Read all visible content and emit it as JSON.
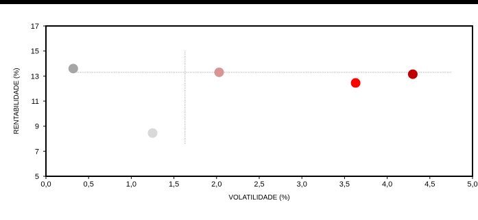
{
  "chart_data": {
    "type": "scatter",
    "xlabel": "VOLATILIDADE (%)",
    "ylabel": "RENTABILIDADE (%)",
    "xlim": [
      0,
      5
    ],
    "ylim": [
      5,
      17
    ],
    "x_ticks": [
      "0,0",
      "0,5",
      "1,0",
      "1,5",
      "2,0",
      "2,5",
      "3,0",
      "3,5",
      "4,0",
      "4,5",
      "5,0"
    ],
    "y_ticks": [
      "5",
      "7",
      "9",
      "11",
      "13",
      "15",
      "17"
    ],
    "grid": false,
    "reference_lines": [
      {
        "orientation": "vertical",
        "x": 1.63,
        "y_from": 7.6,
        "y_to": 15.0
      },
      {
        "orientation": "horizontal",
        "y": 13.3,
        "x_from": 0.3,
        "x_to": 4.75
      }
    ],
    "points": [
      {
        "x": 0.32,
        "y": 13.6,
        "color": "#a6a6a6"
      },
      {
        "x": 1.25,
        "y": 8.45,
        "color": "#d9d9d9"
      },
      {
        "x": 2.03,
        "y": 13.3,
        "color": "#d99594"
      },
      {
        "x": 3.63,
        "y": 12.45,
        "color": "#ff0000"
      },
      {
        "x": 4.3,
        "y": 13.15,
        "color": "#c00000"
      }
    ]
  }
}
